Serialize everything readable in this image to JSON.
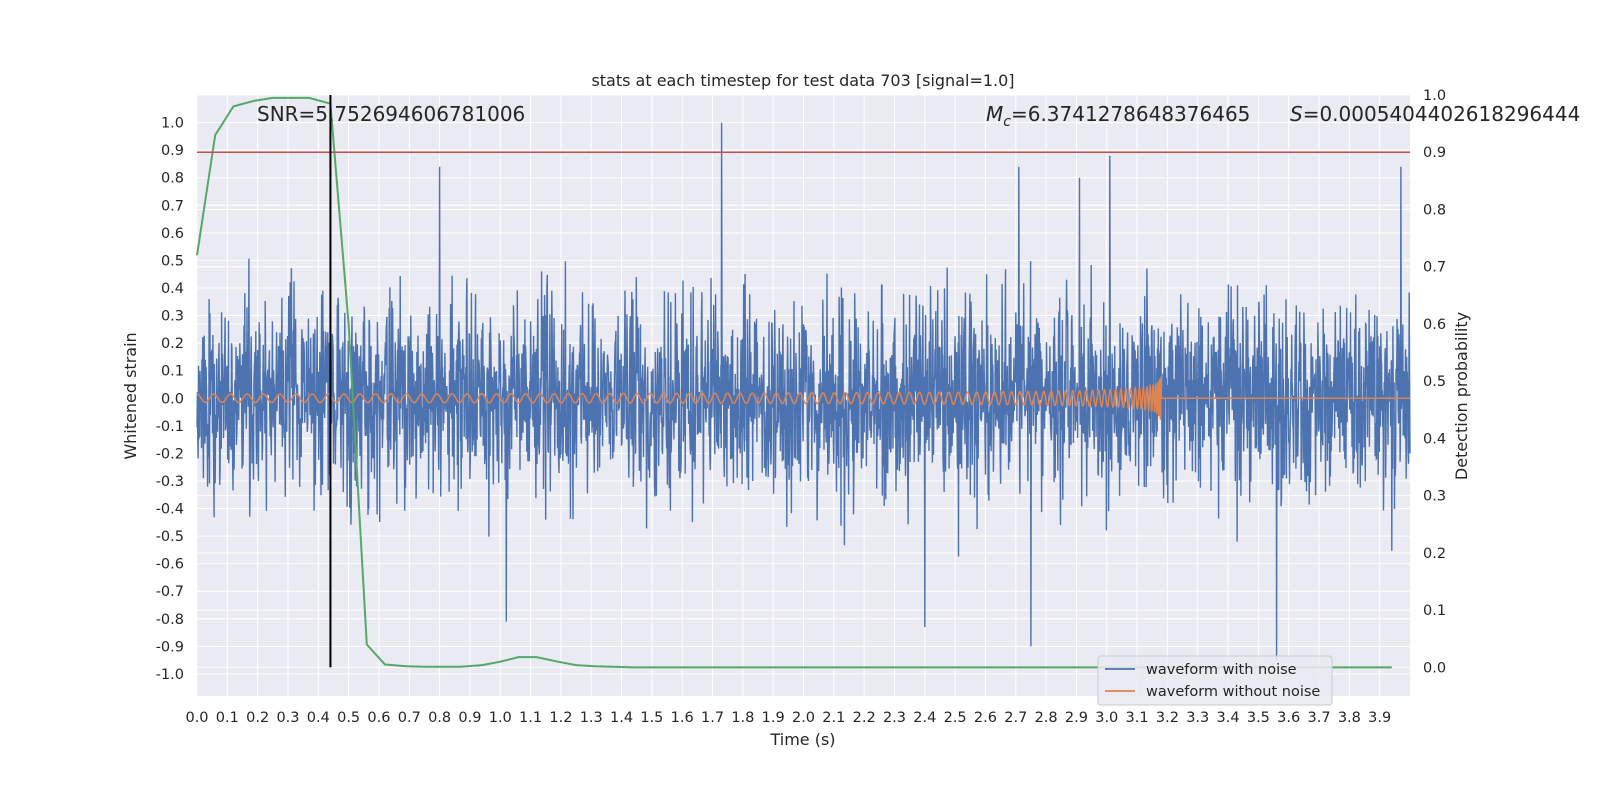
{
  "chart_data": {
    "type": "line",
    "title": "stats at each timestep for test data 703 [signal=1.0]",
    "xlabel": "Time (s)",
    "ylabel": "Whitened strain",
    "y2label": "Detection probability",
    "xlim": [
      0.0,
      4.0
    ],
    "ylim": [
      -1.08,
      1.1
    ],
    "y2lim": [
      -0.05,
      1.0
    ],
    "grid": true,
    "x_ticks": [
      "0.0",
      "0.1",
      "0.2",
      "0.3",
      "0.4",
      "0.5",
      "0.6",
      "0.7",
      "0.8",
      "0.9",
      "1.0",
      "1.1",
      "1.2",
      "1.3",
      "1.4",
      "1.5",
      "1.6",
      "1.7",
      "1.8",
      "1.9",
      "2.0",
      "2.1",
      "2.2",
      "2.3",
      "2.4",
      "2.5",
      "2.6",
      "2.7",
      "2.8",
      "2.9",
      "3.0",
      "3.1",
      "3.2",
      "3.3",
      "3.4",
      "3.5",
      "3.6",
      "3.7",
      "3.8",
      "3.9"
    ],
    "y_ticks": [
      "1.0",
      "0.9",
      "0.8",
      "0.7",
      "0.6",
      "0.5",
      "0.4",
      "0.3",
      "0.2",
      "0.1",
      "0.0",
      "-0.1",
      "-0.2",
      "-0.3",
      "-0.4",
      "-0.5",
      "-0.6",
      "-0.7",
      "-0.8",
      "-0.9",
      "-1.0"
    ],
    "y2_ticks": [
      "1.0",
      "0.9",
      "0.8",
      "0.7",
      "0.6",
      "0.5",
      "0.4",
      "0.3",
      "0.2",
      "0.1",
      "0.0"
    ],
    "annotations": {
      "snr": "SNR=5.752694606781006",
      "mc_symbol": "M",
      "mc_sub": "c",
      "mc_value": "=6.3741278648376465",
      "s_symbol": "S",
      "s_value": "=0.0005404402618296444"
    },
    "series": [
      {
        "name": "waveform with noise",
        "color": "#4c72b0",
        "description_type": "noise",
        "amplitude_typical": 0.3,
        "peaks": [
          {
            "x": 1.73,
            "y": 1.0
          },
          {
            "x": 0.8,
            "y": 0.84
          },
          {
            "x": 3.01,
            "y": 0.88
          },
          {
            "x": 2.91,
            "y": 0.8
          },
          {
            "x": 2.71,
            "y": 0.84
          },
          {
            "x": 3.97,
            "y": 0.84
          },
          {
            "x": 3.56,
            "y": -0.95
          },
          {
            "x": 2.75,
            "y": -0.9
          },
          {
            "x": 1.02,
            "y": -0.81
          },
          {
            "x": 2.4,
            "y": -0.83
          }
        ]
      },
      {
        "name": "waveform without noise",
        "color": "#dd8452",
        "description_type": "chirp",
        "merger_time": 3.18,
        "peak_amplitude": 0.2,
        "start_amplitude": 0.015
      },
      {
        "name": "",
        "color": "#55a868",
        "axis": "y2",
        "x": [
          0.0,
          0.06,
          0.12,
          0.19,
          0.25,
          0.31,
          0.37,
          0.44,
          0.5,
          0.56,
          0.62,
          0.69,
          0.75,
          0.81,
          0.87,
          0.94,
          1.0,
          1.06,
          1.12,
          1.19,
          1.25,
          1.31,
          1.37,
          1.44,
          1.5,
          2.0,
          2.5,
          3.0,
          3.5,
          3.94
        ],
        "y": [
          0.72,
          0.93,
          0.98,
          0.99,
          0.995,
          0.995,
          0.995,
          0.985,
          0.6,
          0.04,
          0.005,
          0.002,
          0.001,
          0.001,
          0.001,
          0.004,
          0.01,
          0.018,
          0.018,
          0.01,
          0.004,
          0.002,
          0.001,
          0.0,
          0.0,
          0.0,
          0.0,
          0.0,
          0.0,
          0.0
        ]
      }
    ],
    "threshold": {
      "axis": "y2",
      "value": 0.9,
      "color": "#c44e52"
    },
    "marker_line": {
      "x": 0.44,
      "color": "#000000"
    },
    "legend": {
      "position": "lower-right",
      "items": [
        {
          "label": "waveform with noise",
          "color": "#4c72b0"
        },
        {
          "label": "waveform without noise",
          "color": "#dd8452"
        }
      ]
    },
    "colors": {
      "axes_bg": "#eaeaf2",
      "grid": "#ffffff"
    }
  }
}
